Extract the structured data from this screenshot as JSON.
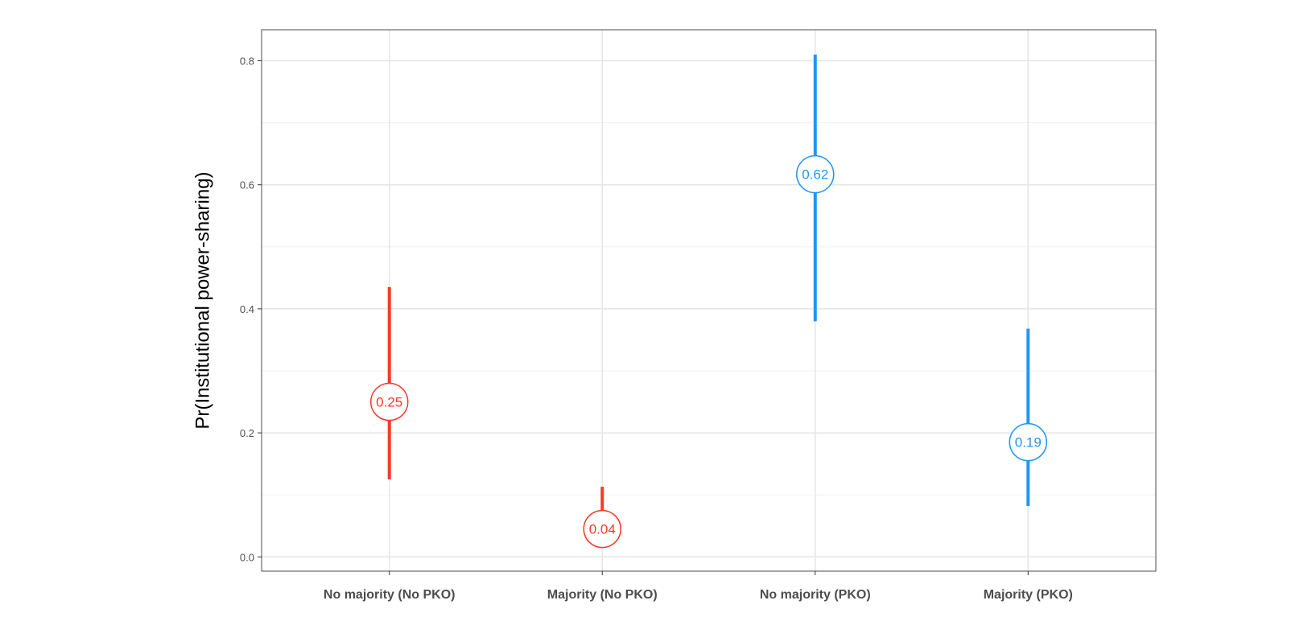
{
  "chart_data": {
    "type": "errorbar",
    "title": "",
    "xlabel": "",
    "ylabel": "Pr(Institutional power-sharing)",
    "ylim": [
      -0.023,
      0.85
    ],
    "yticks": [
      0.0,
      0.2,
      0.4,
      0.6,
      0.8
    ],
    "ytick_labels": [
      "0.0",
      "0.2",
      "0.4",
      "0.6",
      "0.8"
    ],
    "grid": true,
    "legend": "none",
    "categories": [
      "No majority (No PKO)",
      "Majority (No PKO)",
      "No majority (PKO)",
      "Majority (PKO)"
    ],
    "points": [
      {
        "category": "No majority (No PKO)",
        "estimate": 0.25,
        "lower": 0.125,
        "upper": 0.435,
        "label": "0.25",
        "color": "#F8392B"
      },
      {
        "category": "Majority (No PKO)",
        "estimate": 0.045,
        "lower": 0.045,
        "upper": 0.113,
        "label": "0.04",
        "color": "#F8392B"
      },
      {
        "category": "No majority (PKO)",
        "estimate": 0.617,
        "lower": 0.38,
        "upper": 0.81,
        "label": "0.62",
        "color": "#2196F3"
      },
      {
        "category": "Majority (PKO)",
        "estimate": 0.185,
        "lower": 0.082,
        "upper": 0.368,
        "label": "0.19",
        "color": "#2196F3"
      }
    ]
  }
}
